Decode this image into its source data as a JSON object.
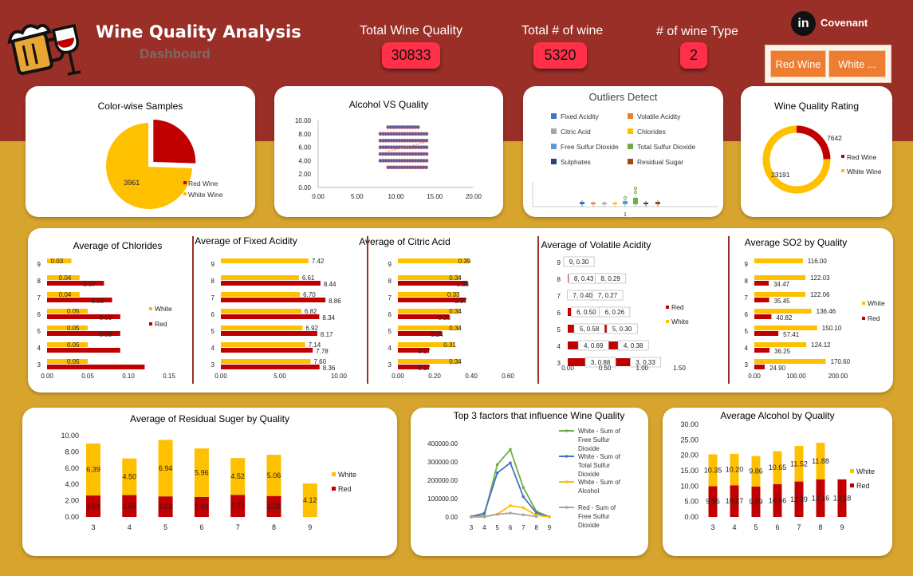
{
  "header": {
    "title": "Wine Quality Analysis",
    "subtitle": "Dashboard",
    "brand": "Covenant",
    "brand_icon": "linkedin-icon",
    "logo_icon": "beer-mug-wine-glass-icon",
    "kpis": [
      {
        "label": "Total Wine Quality",
        "value": "30833"
      },
      {
        "label": "Total # of wine",
        "value": "5320"
      },
      {
        "label": "# of wine Type",
        "value": "2"
      }
    ],
    "slicer": [
      "Red Wine",
      "White ..."
    ]
  },
  "colors": {
    "red": "#c00000",
    "white": "#ffc000",
    "header": "#9a2f27",
    "band": "#d7a42d",
    "kpi": "#ff3048",
    "slicer": "#ed7d31"
  },
  "chart_data": [
    {
      "id": "color_samples",
      "type": "pie",
      "title": "Color-wise Samples",
      "labels": [
        "Red Wine",
        "White Wine"
      ],
      "values": [
        1359,
        3961
      ],
      "data_labels": [
        "",
        "3961"
      ],
      "legend": "right"
    },
    {
      "id": "alcohol_vs_quality",
      "type": "scatter",
      "title": "Alcohol VS Quality",
      "xlim": [
        0,
        20
      ],
      "ylim": [
        0,
        10
      ],
      "xticks": [
        "0.00",
        "5.00",
        "10.00",
        "15.00",
        "20.00"
      ],
      "yticks": [
        "0.00",
        "2.00",
        "4.00",
        "6.00",
        "8.00",
        "10.00"
      ],
      "quality_levels": [
        3,
        4,
        5,
        6,
        7,
        8,
        9
      ],
      "alcohol_range": [
        8,
        14.2
      ]
    },
    {
      "id": "outliers",
      "type": "box",
      "title": "Outliers Detect",
      "legend": [
        "Fixed Acidity",
        "Volatile Acidity",
        "Citric Acid",
        "Chlorides",
        "Free Sulfur Dioxide",
        "Total Sulfur Dioxide",
        "Sulphates",
        "Residual Sugar"
      ],
      "legend_colors": [
        "#4472c4",
        "#ed7d31",
        "#a5a5a5",
        "#ffc000",
        "#5b9bd5",
        "#70ad47",
        "#264478",
        "#9e480e"
      ],
      "x_tick": "1"
    },
    {
      "id": "quality_rating",
      "type": "pie",
      "title": "Wine Quality Rating",
      "labels": [
        "Red Wine",
        "White Wine"
      ],
      "values": [
        7642,
        23191
      ],
      "data_labels": [
        "7642",
        "23191"
      ]
    },
    {
      "id": "avg_chlorides",
      "type": "bar",
      "title": "Average of Chlorides",
      "categories": [
        "3",
        "4",
        "5",
        "6",
        "7",
        "8",
        "9"
      ],
      "series": [
        {
          "name": "White",
          "values": [
            0.05,
            0.05,
            0.05,
            0.05,
            0.04,
            0.04,
            0.03
          ]
        },
        {
          "name": "Red",
          "values": [
            0.12,
            0.09,
            0.09,
            0.09,
            0.08,
            0.07,
            null
          ]
        }
      ],
      "labels": {
        "White": [
          "0.05",
          "0.05",
          "0.05",
          "0.05",
          "0.04",
          "0.04",
          "0.03"
        ],
        "Red": [
          "",
          "",
          "0.09",
          "0.09",
          "0.08",
          "0.07",
          ""
        ]
      },
      "xlim": [
        0,
        0.15
      ],
      "xticks": [
        "0.00",
        "0.05",
        "0.10",
        "0.15"
      ]
    },
    {
      "id": "avg_fixed_acidity",
      "type": "bar",
      "title": "Average of Fixed Acidity",
      "categories": [
        "3",
        "4",
        "5",
        "6",
        "7",
        "8",
        "9"
      ],
      "series": [
        {
          "name": "White",
          "values": [
            7.6,
            7.14,
            6.92,
            6.82,
            6.7,
            6.61,
            7.42
          ]
        },
        {
          "name": "Red",
          "values": [
            8.36,
            7.78,
            8.17,
            8.34,
            8.86,
            8.44,
            null
          ]
        }
      ],
      "labels": {
        "White": [
          "7.60",
          "7.14",
          "6.92",
          "6.82",
          "6.70",
          "6.61",
          "7.42"
        ],
        "Red": [
          "8.36",
          "7.78",
          "8.17",
          "8.34",
          "8.86",
          "8.44",
          ""
        ]
      },
      "xlim": [
        0,
        10
      ],
      "xticks": [
        "0.00",
        "5.00",
        "10.00"
      ]
    },
    {
      "id": "avg_citric_acid",
      "type": "bar",
      "title": "Average of Citric Acid",
      "categories": [
        "3",
        "4",
        "5",
        "6",
        "7",
        "8",
        "9"
      ],
      "series": [
        {
          "name": "White",
          "values": [
            0.34,
            0.31,
            0.34,
            0.34,
            0.33,
            0.34,
            0.39
          ]
        },
        {
          "name": "Red",
          "values": [
            0.17,
            0.17,
            0.24,
            0.28,
            0.37,
            0.38,
            null
          ]
        }
      ],
      "labels": {
        "White": [
          "0.34",
          "0.31",
          "0.34",
          "0.34",
          "0.33",
          "0.34",
          "0.39"
        ],
        "Red": [
          "0.17",
          "0.17",
          "0.24",
          "0.28",
          "0.37",
          "0.38",
          ""
        ]
      },
      "xlim": [
        0,
        0.6
      ],
      "xticks": [
        "0.00",
        "0.20",
        "0.40",
        "0.60"
      ]
    },
    {
      "id": "avg_volatile_acidity",
      "type": "stacked_bar",
      "title": "Average of Volatile Acidity",
      "categories": [
        "3",
        "4",
        "5",
        "6",
        "7",
        "8",
        "9"
      ],
      "series": [
        {
          "name": "Red",
          "values": [
            0.88,
            0.69,
            0.58,
            0.5,
            0.4,
            0.43,
            null
          ]
        },
        {
          "name": "White",
          "values": [
            0.33,
            0.38,
            0.3,
            0.26,
            0.27,
            0.29,
            0.3
          ]
        }
      ],
      "labels": {
        "Red": [
          "3, 0.88",
          "4, 0.69",
          "5, 0.58",
          "6, 0.50",
          "7, 0.40",
          "8, 0.43",
          ""
        ],
        "White": [
          "3, 0.33",
          "4, 0.38",
          "5, 0.30",
          "6, 0.26",
          "7, 0.27",
          "8, 0.29",
          "9, 0.30"
        ]
      },
      "xlim": [
        0,
        1.5
      ],
      "xticks": [
        "0.00",
        "0.50",
        "1.00",
        "1.50"
      ]
    },
    {
      "id": "avg_so2",
      "type": "bar",
      "title": "Average SO2 by Quality",
      "categories": [
        "3",
        "4",
        "5",
        "6",
        "7",
        "8",
        "9"
      ],
      "series": [
        {
          "name": "White",
          "values": [
            170.6,
            124.12,
            150.1,
            136.46,
            122.06,
            122.03,
            116.0
          ]
        },
        {
          "name": "Red",
          "values": [
            24.9,
            36.25,
            57.41,
            40.82,
            35.45,
            34.47,
            null
          ]
        }
      ],
      "labels": {
        "White": [
          "170.60",
          "124.12",
          "150.10",
          "136.46",
          "122.06",
          "122.03",
          "116.00"
        ],
        "Red": [
          "24.90",
          "36.25",
          "57.41",
          "40.82",
          "35.45",
          "34.47",
          ""
        ]
      },
      "xlim": [
        0,
        200
      ],
      "xticks": [
        "0.00",
        "100.00",
        "200.00"
      ]
    },
    {
      "id": "avg_residual_sugar",
      "type": "stacked_column",
      "title": "Average of Residual Suger by Quality",
      "categories": [
        "3",
        "4",
        "5",
        "6",
        "7",
        "8",
        "9"
      ],
      "series": [
        {
          "name": "Red",
          "values": [
            2.64,
            2.69,
            2.53,
            2.46,
            2.72,
            2.58,
            null
          ]
        },
        {
          "name": "White",
          "values": [
            6.39,
            4.5,
            6.94,
            5.96,
            4.52,
            5.06,
            4.12
          ]
        }
      ],
      "labels": {
        "Red": [
          "2.64",
          "2.69",
          "2.53",
          "2.46",
          "2.72",
          "2.58",
          ""
        ],
        "White": [
          "6.39",
          "4.50",
          "6.94",
          "5.96",
          "4.52",
          "5.06",
          "4.12"
        ]
      },
      "ylim": [
        0,
        10
      ],
      "yticks": [
        "0.00",
        "2.00",
        "4.00",
        "6.00",
        "8.00",
        "10.00"
      ]
    },
    {
      "id": "top3_factors",
      "type": "line",
      "title": "Top 3 factors that influence Wine Quality",
      "categories": [
        "3",
        "4",
        "5",
        "6",
        "7",
        "8",
        "9"
      ],
      "series": [
        {
          "name": "White - Sum of Free Sulfur Dioxide",
          "values": [
            700,
            8000,
            285000,
            368000,
            160000,
            30000,
            500
          ]
        },
        {
          "name": "White - Sum of Total Sulfur Dioxide",
          "values": [
            2500,
            20000,
            240000,
            295000,
            110000,
            22000,
            600
          ]
        },
        {
          "name": "White - Sum of Alcohol",
          "values": [
            200,
            1500,
            15000,
            62000,
            50000,
            9000,
            50
          ]
        },
        {
          "name": "Red - Sum of Free Sulfur Dioxide",
          "values": [
            100,
            700,
            14000,
            21000,
            12000,
            2000,
            null
          ]
        }
      ],
      "series_colors": [
        "#70ad47",
        "#4472c4",
        "#ffc000",
        "#a5a5a5"
      ],
      "ylim": [
        0,
        400000
      ],
      "yticks": [
        "0.00",
        "100000.00",
        "200000.00",
        "300000.00",
        "400000.00"
      ]
    },
    {
      "id": "avg_alcohol",
      "type": "stacked_column",
      "title": "Average Alcohol by Quality",
      "categories": [
        "3",
        "4",
        "5",
        "6",
        "7",
        "8",
        "9"
      ],
      "series": [
        {
          "name": "Red",
          "values": [
            9.96,
            10.27,
            9.89,
            10.66,
            11.49,
            12.16,
            12.18
          ]
        },
        {
          "name": "White",
          "values": [
            10.35,
            10.2,
            9.86,
            10.65,
            11.52,
            11.88,
            null
          ]
        }
      ],
      "labels": {
        "Red": [
          "9.96",
          "10.27",
          "9.89",
          "10.66",
          "11.49",
          "12.16",
          "12.18"
        ],
        "White": [
          "10.35",
          "10.20",
          "9.86",
          "10.65",
          "11.52",
          "11.88",
          ""
        ]
      },
      "ylim": [
        0,
        30
      ],
      "yticks": [
        "0.00",
        "5.00",
        "10.00",
        "15.00",
        "20.00",
        "25.00",
        "30.00"
      ]
    }
  ]
}
